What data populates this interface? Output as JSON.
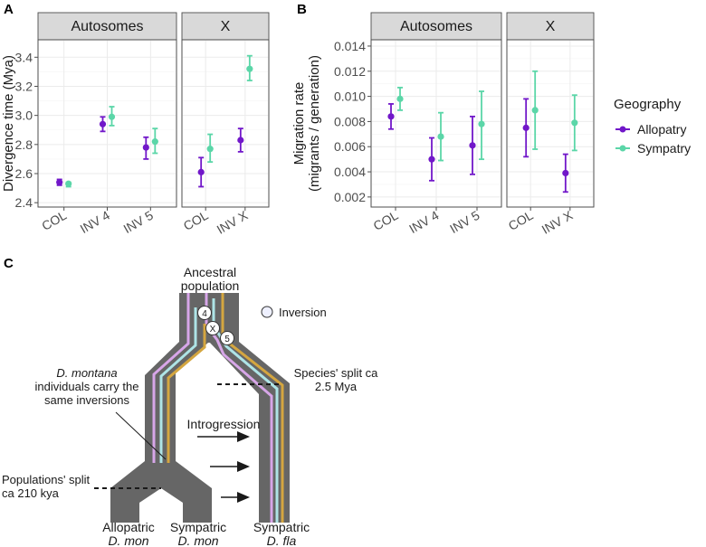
{
  "colors": {
    "allopatry": "#7117c9",
    "sympatry": "#5bd6a8",
    "tree": "#666666",
    "lineage_pink": "#d7a6e8",
    "lineage_blue": "#aee4e6",
    "lineage_gold": "#d4a640"
  },
  "chart_data": [
    {
      "panel": "A",
      "type": "scatter",
      "ylabel": "Divergence time (Mya)",
      "ylim": [
        2.37,
        3.52
      ],
      "yticks": [
        2.4,
        2.6,
        2.8,
        3.0,
        3.2,
        3.4
      ],
      "ytick_labels": [
        "2.4",
        "2.6",
        "2.8",
        "3.0",
        "3.2",
        "3.4"
      ],
      "facets": [
        {
          "strip": "Autosomes",
          "categories": [
            "COL",
            "INV 4",
            "INV 5"
          ],
          "series": [
            {
              "name": "Allopatry",
              "values": [
                2.54,
                2.94,
                2.78
              ],
              "lower": [
                2.52,
                2.89,
                2.7
              ],
              "upper": [
                2.56,
                2.99,
                2.85
              ]
            },
            {
              "name": "Sympatry",
              "values": [
                2.53,
                2.99,
                2.82
              ],
              "lower": [
                2.51,
                2.93,
                2.74
              ],
              "upper": [
                2.54,
                3.06,
                2.91
              ]
            }
          ]
        },
        {
          "strip": "X",
          "categories": [
            "COL",
            "INV X"
          ],
          "series": [
            {
              "name": "Allopatry",
              "values": [
                2.61,
                2.83
              ],
              "lower": [
                2.51,
                2.75
              ],
              "upper": [
                2.71,
                2.91
              ]
            },
            {
              "name": "Sympatry",
              "values": [
                2.77,
                3.32
              ],
              "lower": [
                2.68,
                3.24
              ],
              "upper": [
                2.87,
                3.41
              ]
            }
          ]
        }
      ]
    },
    {
      "panel": "B",
      "type": "scatter",
      "ylabel_line1": "Migration rate",
      "ylabel_line2": "(migrants / generation)",
      "ylim": [
        0.0012,
        0.0145
      ],
      "yticks": [
        0.002,
        0.004,
        0.006,
        0.008,
        0.01,
        0.012,
        0.014
      ],
      "ytick_labels": [
        "0.002",
        "0.004",
        "0.006",
        "0.008",
        "0.010",
        "0.012",
        "0.014"
      ],
      "facets": [
        {
          "strip": "Autosomes",
          "categories": [
            "COL",
            "INV 4",
            "INV 5"
          ],
          "series": [
            {
              "name": "Allopatry",
              "values": [
                0.0084,
                0.005,
                0.0061
              ],
              "lower": [
                0.0074,
                0.0033,
                0.0038
              ],
              "upper": [
                0.0094,
                0.0067,
                0.0084
              ]
            },
            {
              "name": "Sympatry",
              "values": [
                0.0098,
                0.0068,
                0.0078
              ],
              "lower": [
                0.0089,
                0.0049,
                0.005
              ],
              "upper": [
                0.0107,
                0.0087,
                0.0104
              ]
            }
          ]
        },
        {
          "strip": "X",
          "categories": [
            "COL",
            "INV X"
          ],
          "series": [
            {
              "name": "Allopatry",
              "values": [
                0.0075,
                0.0039
              ],
              "lower": [
                0.0052,
                0.0024
              ],
              "upper": [
                0.0098,
                0.0054
              ]
            },
            {
              "name": "Sympatry",
              "values": [
                0.0089,
                0.0079
              ],
              "lower": [
                0.0058,
                0.0057
              ],
              "upper": [
                0.012,
                0.0101
              ]
            }
          ]
        }
      ]
    }
  ],
  "legend": {
    "title": "Geography",
    "items": [
      "Allopatry",
      "Sympatry"
    ]
  },
  "panel_labels": {
    "a": "A",
    "b": "B",
    "c": "C"
  },
  "diagram": {
    "ancestral_line1": "Ancestral",
    "ancestral_line2": "population",
    "inversion_label": "Inversion",
    "marker_4": "4",
    "marker_x": "X",
    "marker_5": "5",
    "species_split_line1": "Species' split ca",
    "species_split_line2": "2.5 Mya",
    "montana_line1_italic": "D. montana",
    "montana_line2": "individuals carry the",
    "montana_line3": "same inversions",
    "introgression": "Introgression",
    "pop_split_line1": "Populations' split",
    "pop_split_line2": "ca 210 kya",
    "bottom_allopatric": "Allopatric",
    "bottom_allopatric_sp": "D. mon",
    "bottom_sympatric1": "Sympatric",
    "bottom_sympatric1_sp": "D. mon",
    "bottom_sympatric2": "Sympatric",
    "bottom_sympatric2_sp": "D. fla"
  }
}
